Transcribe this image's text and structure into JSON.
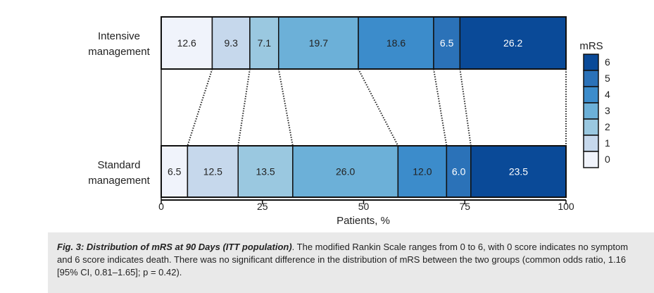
{
  "chart_data": {
    "type": "stacked-horizontal-bar",
    "xlabel": "Patients, %",
    "xlim": [
      0,
      100
    ],
    "xticks": [
      0,
      25,
      50,
      75,
      100
    ],
    "groups": [
      {
        "label_line1": "Intensive",
        "label_line2": "management",
        "values": [
          12.6,
          9.3,
          7.1,
          19.7,
          18.6,
          6.5,
          26.2
        ],
        "labels": [
          "12.6",
          "9.3",
          "7.1",
          "19.7",
          "18.6",
          "6.5",
          "26.2"
        ]
      },
      {
        "label_line1": "Standard",
        "label_line2": "management",
        "values": [
          6.5,
          12.5,
          13.5,
          26.0,
          12.0,
          6.0,
          23.5
        ],
        "labels": [
          "6.5",
          "12.5",
          "13.5",
          "26.0",
          "12.0",
          "6.0",
          "23.5"
        ]
      }
    ],
    "categories": [
      "0",
      "1",
      "2",
      "3",
      "4",
      "5",
      "6"
    ],
    "colors": [
      "#f0f3fb",
      "#c6d8ec",
      "#9ac8e0",
      "#6cb0d8",
      "#3c8ccb",
      "#2b72b8",
      "#0a4a98"
    ],
    "label_colors": [
      "#222222",
      "#222222",
      "#222222",
      "#222222",
      "#222222",
      "#ffffff",
      "#ffffff"
    ],
    "legend": {
      "title": "mRS",
      "entries": [
        "6",
        "5",
        "4",
        "3",
        "2",
        "1",
        "0"
      ],
      "placement": "right"
    }
  },
  "caption": {
    "title": "Fig. 3: Distribution of mRS at 90 Days (ITT population)",
    "body": ". The modified Rankin Scale ranges from 0 to 6, with 0 score indicates no symptom and 6 score indicates death. There was no significant difference in the distribution of mRS between the two groups (common odds ratio, 1.16 [95% CI, 0.81–1.65]; p = 0.42)."
  }
}
